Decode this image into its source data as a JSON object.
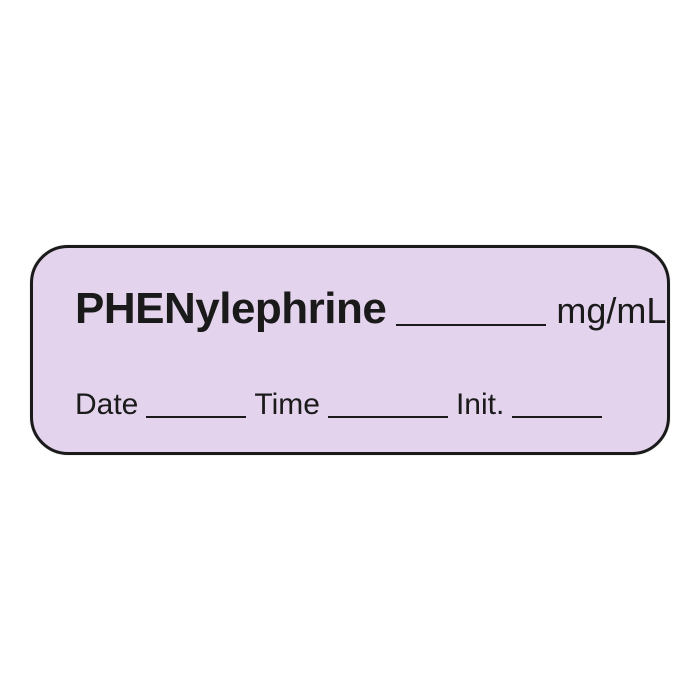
{
  "label": {
    "drug_name": "PHENylephrine",
    "unit": "mg/mL",
    "fields": {
      "date": "Date",
      "time": "Time",
      "init": "Init."
    },
    "colors": {
      "background": "#e4d3ec",
      "border": "#1a1a1a",
      "text": "#1a1a1a"
    },
    "font_sizes": {
      "drug_name": 44,
      "unit": 36,
      "field_label": 30
    },
    "border_radius": 38,
    "border_width": 3
  }
}
